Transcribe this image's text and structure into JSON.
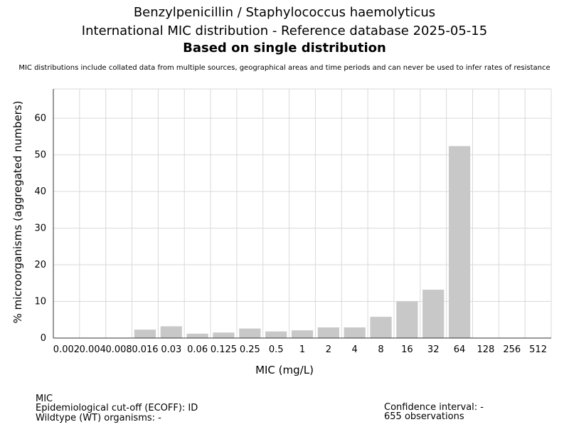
{
  "header": {
    "title_line1": "Benzylpenicillin / Staphylococcus haemolyticus",
    "title_line2": "International MIC distribution - Reference database 2025-05-15",
    "title_line3": "Based on single distribution",
    "subtitle": "MIC distributions include collated data from multiple sources, geographical areas and time periods and can never be used to infer rates of resistance"
  },
  "chart_data": {
    "type": "bar",
    "categories": [
      "0.002",
      "0.004",
      "0.008",
      "0.016",
      "0.03",
      "0.06",
      "0.125",
      "0.25",
      "0.5",
      "1",
      "2",
      "4",
      "8",
      "16",
      "32",
      "64",
      "128",
      "256",
      "512"
    ],
    "values": [
      0,
      0,
      0,
      2.3,
      3.2,
      1.2,
      1.5,
      2.6,
      1.8,
      2.1,
      2.9,
      2.9,
      5.8,
      10.0,
      13.2,
      52.4,
      0,
      0,
      0
    ],
    "xlabel": "MIC (mg/L)",
    "ylabel": "% microorganisms (aggregated numbers)",
    "ylim": [
      0,
      68
    ],
    "yticks": [
      0,
      10,
      20,
      30,
      40,
      50,
      60
    ],
    "grid": true,
    "bar_color": "#c8c8c8",
    "grid_color": "#d9d9d9"
  },
  "footer": {
    "mic_label": "MIC",
    "ecoff": "Epidemiological cut-off (ECOFF): ID",
    "wildtype": "Wildtype (WT) organisms:  -",
    "confidence": "Confidence interval: -",
    "observations": "655 observations"
  }
}
